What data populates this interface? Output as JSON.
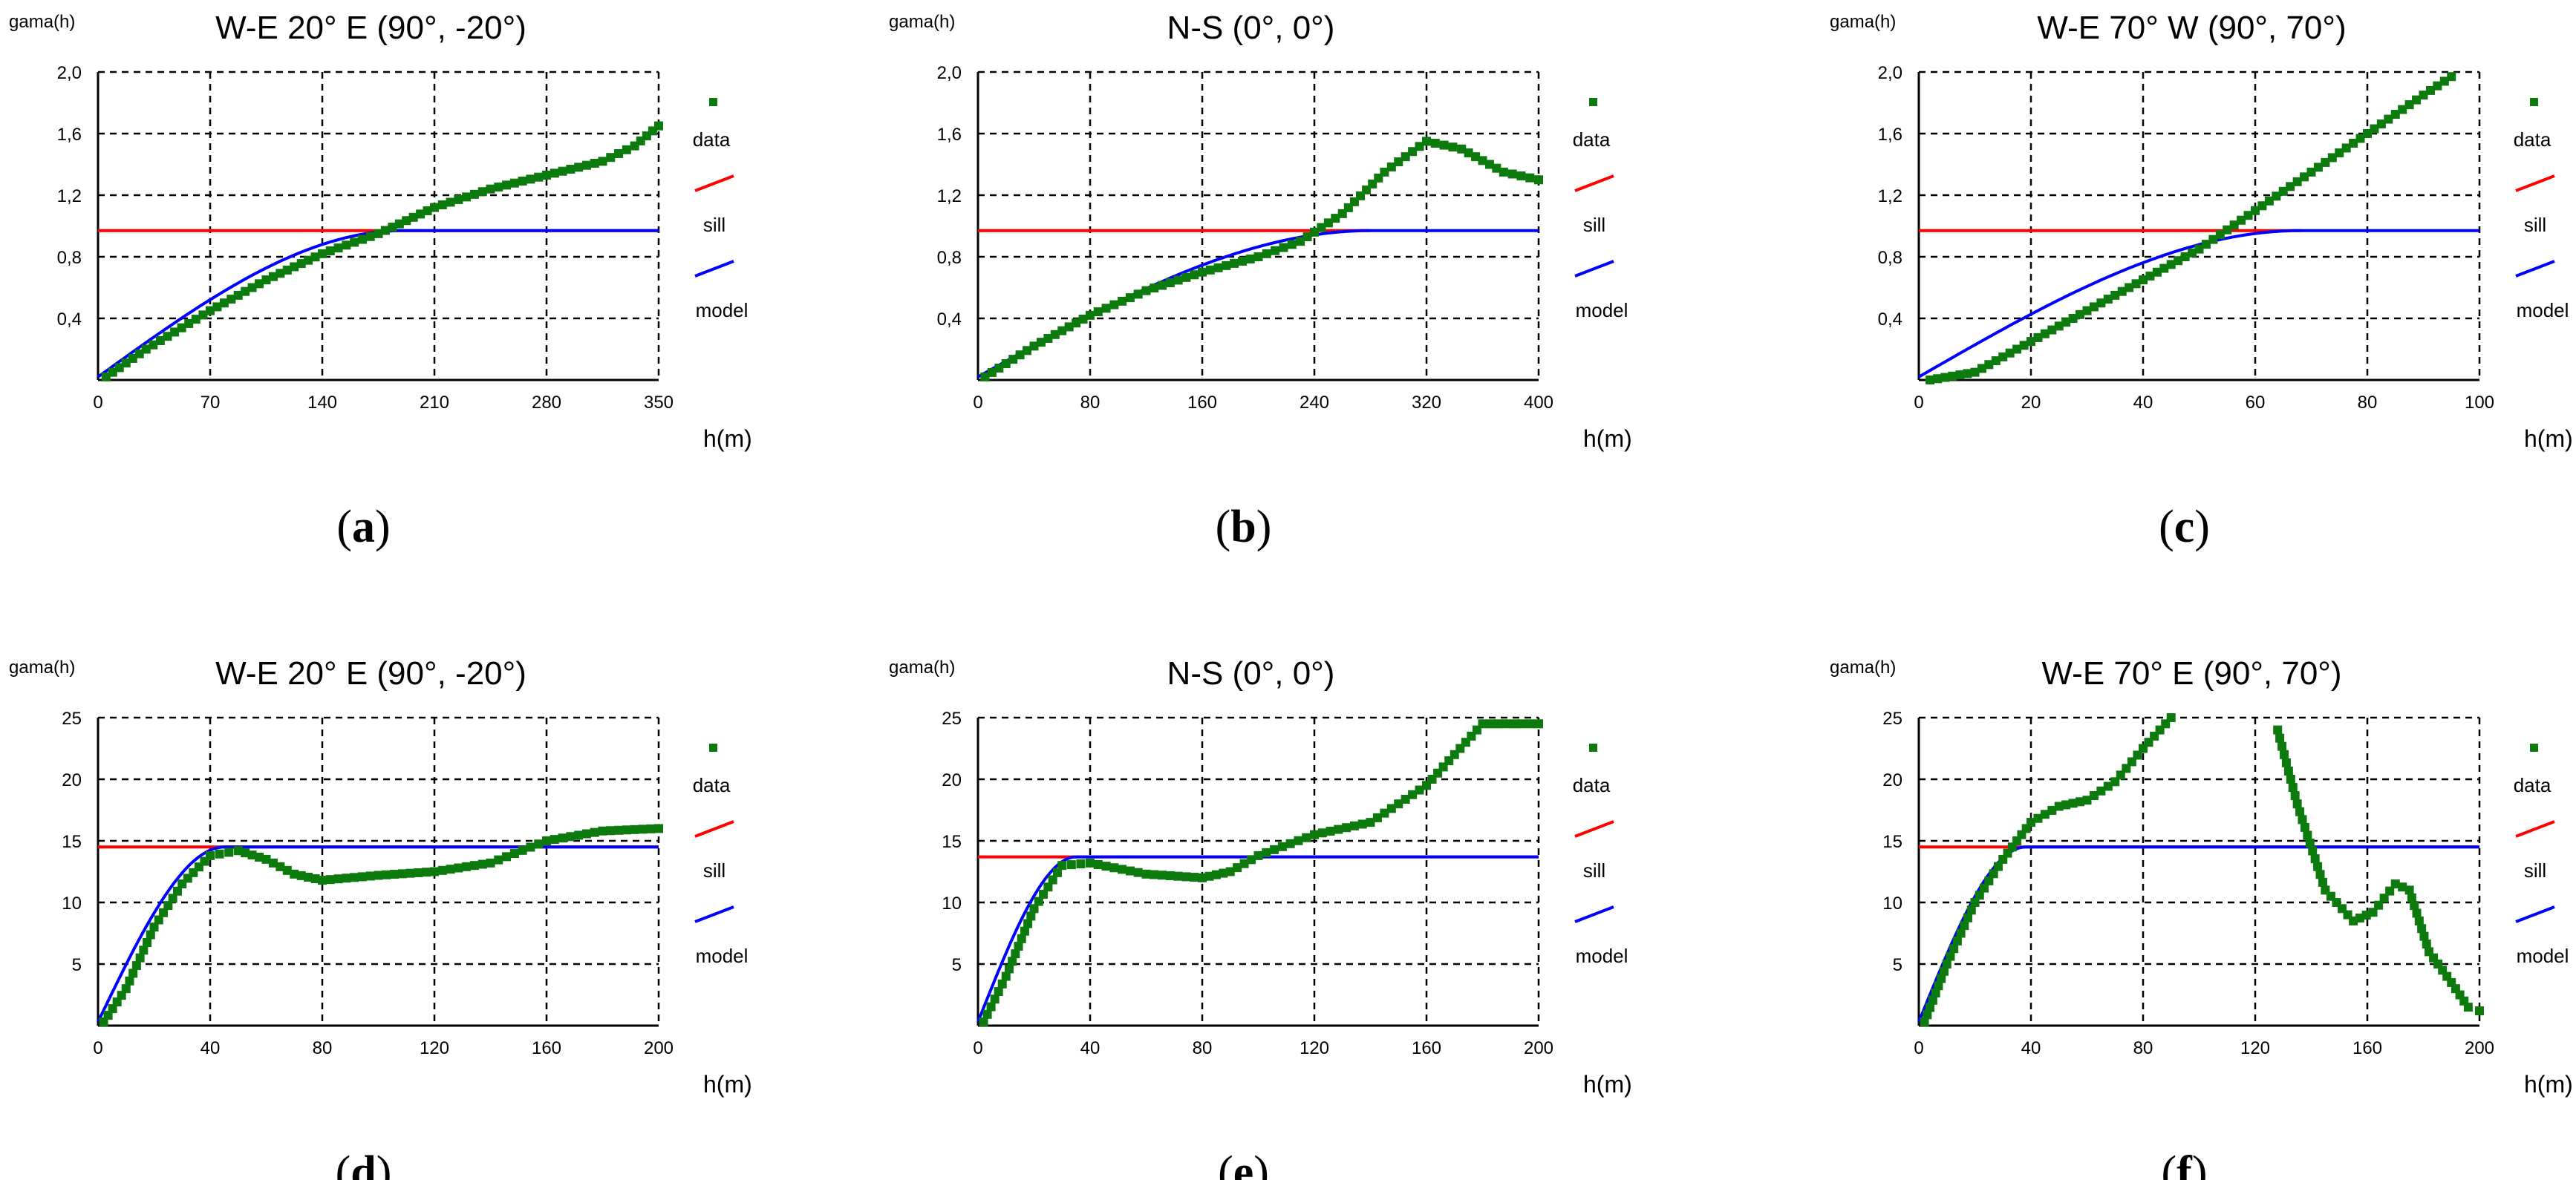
{
  "chart_data": [
    {
      "type": "scatter",
      "id": "a",
      "caption_label": "a",
      "title": "W-E 20° E (90°, -20°)",
      "ylabel": "gama(h)",
      "xlabel": "h(m)",
      "xlim": [
        0,
        350
      ],
      "ylim": [
        0,
        2.0
      ],
      "xticks": [
        "0",
        "70",
        "140",
        "210",
        "280",
        "350"
      ],
      "yticks": [
        "0,4",
        "0,8",
        "1,2",
        "1,6",
        "2,0"
      ],
      "sill_value": 0.97,
      "sill_range": [
        0,
        350
      ],
      "model": {
        "nugget": 0.02,
        "sill": 0.97,
        "range": 190,
        "x_end": 350
      },
      "data_points": [
        [
          5,
          0.02
        ],
        [
          30,
          0.2
        ],
        [
          70,
          0.45
        ],
        [
          105,
          0.65
        ],
        [
          140,
          0.82
        ],
        [
          175,
          0.95
        ],
        [
          210,
          1.12
        ],
        [
          245,
          1.24
        ],
        [
          280,
          1.33
        ],
        [
          315,
          1.42
        ],
        [
          335,
          1.52
        ],
        [
          350,
          1.65
        ]
      ],
      "legend": [
        "data",
        "sill",
        "model"
      ]
    },
    {
      "type": "scatter",
      "id": "b",
      "caption_label": "b",
      "title": "N-S (0°, 0°)",
      "ylabel": "gama(h)",
      "xlabel": "h(m)",
      "xlim": [
        0,
        400
      ],
      "ylim": [
        0,
        2.0
      ],
      "xticks": [
        "0",
        "80",
        "160",
        "240",
        "320",
        "400"
      ],
      "yticks": [
        "0,4",
        "0,8",
        "1,2",
        "1,6",
        "2,0"
      ],
      "sill_value": 0.97,
      "sill_range": [
        0,
        280
      ],
      "model": {
        "nugget": 0.02,
        "sill": 0.97,
        "range": 280,
        "x_end": 400
      },
      "data_points": [
        [
          5,
          0.02
        ],
        [
          40,
          0.22
        ],
        [
          80,
          0.42
        ],
        [
          120,
          0.58
        ],
        [
          160,
          0.7
        ],
        [
          200,
          0.8
        ],
        [
          230,
          0.9
        ],
        [
          260,
          1.08
        ],
        [
          290,
          1.35
        ],
        [
          320,
          1.55
        ],
        [
          345,
          1.5
        ],
        [
          375,
          1.35
        ],
        [
          400,
          1.3
        ]
      ],
      "legend": [
        "data",
        "sill",
        "model"
      ]
    },
    {
      "type": "scatter",
      "id": "c",
      "caption_label": "c",
      "title": "W-E 70° W (90°, 70°)",
      "ylabel": "gama(h)",
      "xlabel": "h(m)",
      "xlim": [
        0,
        100
      ],
      "ylim": [
        0,
        2.0
      ],
      "xticks": [
        "0",
        "20",
        "40",
        "60",
        "80",
        "100"
      ],
      "yticks": [
        "0,4",
        "0,8",
        "1,2",
        "1,6",
        "2,0"
      ],
      "sill_value": 0.97,
      "sill_range": [
        0,
        68
      ],
      "model": {
        "nugget": 0.02,
        "sill": 0.97,
        "range": 68,
        "x_end": 100
      },
      "data_points": [
        [
          2,
          0.0
        ],
        [
          10,
          0.05
        ],
        [
          20,
          0.25
        ],
        [
          30,
          0.45
        ],
        [
          40,
          0.65
        ],
        [
          50,
          0.85
        ],
        [
          60,
          1.1
        ],
        [
          70,
          1.35
        ],
        [
          80,
          1.6
        ],
        [
          90,
          1.85
        ],
        [
          95,
          1.97
        ]
      ],
      "legend": [
        "data",
        "sill",
        "model"
      ]
    },
    {
      "type": "scatter",
      "id": "d",
      "caption_label": "d",
      "title": "W-E 20° E (90°, -20°)",
      "ylabel": "gama(h)",
      "xlabel": "h(m)",
      "xlim": [
        0,
        200
      ],
      "ylim": [
        0,
        25
      ],
      "xticks": [
        "0",
        "40",
        "80",
        "120",
        "160",
        "200"
      ],
      "yticks": [
        "5",
        "10",
        "15",
        "20",
        "25"
      ],
      "sill_value": 14.5,
      "sill_range": [
        0,
        200
      ],
      "model": {
        "nugget": 0.3,
        "sill": 14.5,
        "range": 45,
        "x_end": 200
      },
      "data_points": [
        [
          2,
          0.3
        ],
        [
          10,
          3
        ],
        [
          20,
          8
        ],
        [
          30,
          11.5
        ],
        [
          40,
          13.8
        ],
        [
          50,
          14.2
        ],
        [
          60,
          13.5
        ],
        [
          70,
          12.3
        ],
        [
          80,
          11.8
        ],
        [
          100,
          12.2
        ],
        [
          120,
          12.5
        ],
        [
          140,
          13.2
        ],
        [
          160,
          15
        ],
        [
          180,
          15.8
        ],
        [
          200,
          16
        ]
      ],
      "legend": [
        "data",
        "sill",
        "model"
      ]
    },
    {
      "type": "scatter",
      "id": "e",
      "caption_label": "e",
      "title": "N-S (0°, 0°)",
      "ylabel": "gama(h)",
      "xlabel": "h(m)",
      "xlim": [
        0,
        200
      ],
      "ylim": [
        0,
        25
      ],
      "xticks": [
        "0",
        "40",
        "80",
        "120",
        "160",
        "200"
      ],
      "yticks": [
        "5",
        "10",
        "15",
        "20",
        "25"
      ],
      "sill_value": 13.7,
      "sill_range": [
        0,
        200
      ],
      "model": {
        "nugget": 0.3,
        "sill": 13.7,
        "range": 35,
        "x_end": 200
      },
      "data_points": [
        [
          2,
          0.3
        ],
        [
          10,
          4
        ],
        [
          20,
          9.5
        ],
        [
          30,
          13
        ],
        [
          40,
          13.2
        ],
        [
          60,
          12.3
        ],
        [
          80,
          12
        ],
        [
          90,
          12.5
        ],
        [
          100,
          13.8
        ],
        [
          120,
          15.5
        ],
        [
          140,
          16.5
        ],
        [
          160,
          19.5
        ],
        [
          180,
          24.5
        ],
        [
          200,
          24.5
        ]
      ],
      "legend": [
        "data",
        "sill",
        "model"
      ]
    },
    {
      "type": "scatter",
      "id": "f",
      "caption_label": "f",
      "title": "W-E 70° E (90°, 70°)",
      "ylabel": "gama(h)",
      "xlabel": "h(m)",
      "xlim": [
        0,
        200
      ],
      "ylim": [
        0,
        25
      ],
      "xticks": [
        "0",
        "40",
        "80",
        "120",
        "160",
        "200"
      ],
      "yticks": [
        "5",
        "10",
        "15",
        "20",
        "25"
      ],
      "sill_value": 14.5,
      "sill_range": [
        0,
        200
      ],
      "model": {
        "nugget": 0.3,
        "sill": 14.5,
        "range": 38,
        "x_end": 200
      },
      "data_points": [
        [
          2,
          0.3
        ],
        [
          10,
          5
        ],
        [
          20,
          10
        ],
        [
          30,
          13.5
        ],
        [
          40,
          16.5
        ],
        [
          50,
          17.8
        ],
        [
          60,
          18.3
        ],
        [
          70,
          19.8
        ],
        [
          80,
          22.5
        ],
        [
          90,
          25
        ],
        [
          128,
          24
        ],
        [
          135,
          18
        ],
        [
          145,
          11
        ],
        [
          155,
          8.5
        ],
        [
          162,
          9.2
        ],
        [
          170,
          11.5
        ],
        [
          175,
          11
        ],
        [
          182,
          6
        ],
        [
          190,
          3.5
        ],
        [
          196,
          1.5
        ],
        [
          200,
          1.2
        ]
      ],
      "legend": [
        "data",
        "sill",
        "model"
      ]
    }
  ]
}
